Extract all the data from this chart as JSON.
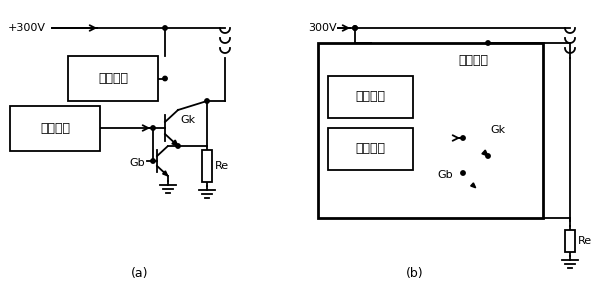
{
  "fig_width": 6.0,
  "fig_height": 2.86,
  "dpi": 100,
  "bg_color": "#ffffff",
  "line_color": "#000000",
  "diagram_a": {
    "label": "(a)",
    "v300_label": "+300V",
    "box1_label": "启动电路",
    "box2_label": "振荡电路",
    "gk_label": "Gk",
    "gb_label": "Gb",
    "re_label": "Re"
  },
  "diagram_b": {
    "label": "(b)",
    "v300_label": "300V",
    "box_outer_label": "厚膜电路",
    "box1_label": "启动电路",
    "box2_label": "振荡电路",
    "gk_label": "Gk",
    "gb_label": "Gb",
    "re_label": "Re"
  }
}
